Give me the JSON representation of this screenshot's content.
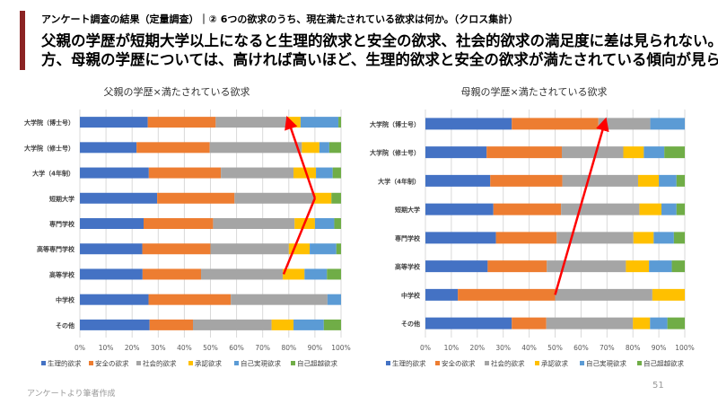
{
  "header": {
    "subtitle": "アンケート調査の結果（定量調査）｜② 6つの欲求のうち、現在満たされている欲求は何か。（クロス集計）",
    "headline_line1": "父親の学歴が短期大学以上になると生理的欲求と安全の欲求、社会的欲求の満足度に差は見られない。一",
    "headline_line2": "方、母親の学歴については、高ければ高いほど、生理的欲求と安全の欲求が満たされている傾向が見られる",
    "accent_color": "#8b2323"
  },
  "footer": {
    "source": "アンケートより筆者作成",
    "page": "51"
  },
  "chart_data": [
    {
      "type": "bar",
      "orientation": "horizontal",
      "stacked": "percent",
      "title": "父親の学歴×満たされている欲求",
      "categories": [
        "大学院（博士号）",
        "大学院（修士号）",
        "大学（4年制）",
        "短期大学",
        "専門学校",
        "高等専門学校",
        "高等学校",
        "中学校",
        "その他"
      ],
      "xlim": [
        0,
        100
      ],
      "xticks": [
        "0%",
        "10%",
        "20%",
        "30%",
        "40%",
        "50%",
        "60%",
        "70%",
        "80%",
        "90%",
        "100%"
      ],
      "grid": true,
      "legend": "bottom",
      "series": [
        {
          "name": "生理的欲求",
          "color": "#4472c4",
          "values": [
            26,
            21.7,
            26.4,
            29.6,
            24.4,
            23.9,
            24,
            26.3,
            26.7
          ]
        },
        {
          "name": "安全の欲求",
          "color": "#ed7d31",
          "values": [
            26,
            28,
            27.6,
            29.6,
            26.6,
            26.1,
            22.4,
            31.5,
            16.6
          ]
        },
        {
          "name": "社会的欲求",
          "color": "#a5a5a5",
          "values": [
            27.5,
            35.3,
            27.8,
            30.3,
            31.2,
            30,
            31.3,
            37,
            30.1
          ]
        },
        {
          "name": "承認欲求",
          "color": "#ffc000",
          "values": [
            5,
            6.7,
            8.6,
            6.8,
            7.8,
            8,
            8.3,
            0,
            8.4
          ]
        },
        {
          "name": "自己実現欲求",
          "color": "#5b9bd5",
          "values": [
            14.5,
            3.8,
            6.4,
            0,
            7.4,
            10.2,
            8.6,
            5.2,
            11.6
          ]
        },
        {
          "name": "自己超越欲求",
          "color": "#70ad47",
          "values": [
            1,
            4.5,
            3.2,
            3.7,
            2.6,
            1.8,
            5.4,
            0,
            6.6
          ]
        }
      ],
      "annotations": [
        {
          "type": "arrow",
          "color": "#ff0000",
          "points": [
            [
              "高等学校",
              78
            ],
            [
              "短期大学",
              90
            ],
            [
              "大学院（博士号）",
              80
            ]
          ]
        }
      ]
    },
    {
      "type": "bar",
      "orientation": "horizontal",
      "stacked": "percent",
      "title": "母親の学歴×満たされている欲求",
      "categories": [
        "大学院（博士号）",
        "大学院（修士号）",
        "大学（4年制）",
        "短期大学",
        "専門学校",
        "高等学校",
        "中学校",
        "その他"
      ],
      "xlim": [
        0,
        100
      ],
      "xticks": [
        "0%",
        "10%",
        "20%",
        "30%",
        "40%",
        "50%",
        "60%",
        "70%",
        "80%",
        "90%",
        "100%"
      ],
      "grid": true,
      "legend": "bottom",
      "series": [
        {
          "name": "生理的欲求",
          "color": "#4472c4",
          "values": [
            33.3,
            23.6,
            25,
            26.2,
            27.2,
            24,
            12.5,
            33.3
          ]
        },
        {
          "name": "安全の欲求",
          "color": "#ed7d31",
          "values": [
            33.4,
            29,
            27.8,
            26.1,
            23.4,
            22.8,
            37.5,
            13.3
          ]
        },
        {
          "name": "社会的欲求",
          "color": "#a5a5a5",
          "values": [
            20,
            23.7,
            29.2,
            30.2,
            29.6,
            30.5,
            37.5,
            33.4
          ]
        },
        {
          "name": "承認欲求",
          "color": "#ffc000",
          "values": [
            0,
            7.9,
            8,
            8.5,
            7.8,
            8.9,
            12.5,
            6.6
          ]
        },
        {
          "name": "自己実現欲求",
          "color": "#5b9bd5",
          "values": [
            13.3,
            7.9,
            6.8,
            5.8,
            7.8,
            8.8,
            0,
            6.7
          ]
        },
        {
          "name": "自己超越欲求",
          "color": "#70ad47",
          "values": [
            0,
            7.9,
            3.2,
            3.2,
            4.2,
            5,
            0,
            6.7
          ]
        }
      ],
      "annotations": [
        {
          "type": "arrow",
          "color": "#ff0000",
          "points": [
            [
              "中学校",
              50
            ],
            [
              "大学院（博士号）",
              69
            ]
          ]
        }
      ]
    }
  ]
}
